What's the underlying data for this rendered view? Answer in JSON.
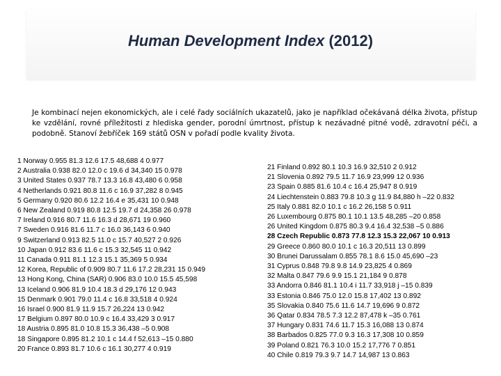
{
  "slide": {
    "title_main": "Human Development Index",
    "title_year": "(2012)",
    "description": "Je kombinací nejen ekonomických, ale i celé řady sociálních ukazatelů, jako je například očekávaná délka života, přístup ke vzdělání, rovné příležitosti z hlediska gender, porodní úmrtnost, přístup k nezávadné pitné vodě, zdravotní péči, a podobně. Stanoví žebříček 169 států OSN v pořadí podle kvality života.",
    "left_rows": [
      "1 Norway 0.955 81.3 12.6 17.5 48,688 4 0.977",
      "2 Australia 0.938 82.0 12.0 c 19.6 d 34,340 15 0.978",
      "3 United States 0.937 78.7 13.3 16.8 43,480 6 0.958",
      "4 Netherlands 0.921 80.8 11.6 c 16.9 37,282 8 0.945",
      "5 Germany 0.920 80.6 12.2 16.4 e 35,431 10 0.948",
      "6 New Zealand 0.919 80.8 12.5 19.7 d 24,358 26 0.978",
      "7 Ireland 0.916 80.7 11.6 16.3 d 28,671 19 0.960",
      "7 Sweden 0.916 81.6 11.7 c 16.0 36,143 6 0.940",
      "9 Switzerland 0.913 82.5 11.0 c 15.7 40,527 2 0.926",
      "10 Japan 0.912 83.6 11.6 c 15.3 32,545 11 0.942",
      "11 Canada 0.911 81.1 12.3 15.1 35,369 5 0.934",
      "12 Korea, Republic of 0.909 80.7 11.6 17.2 28,231 15 0.949",
      "13 Hong Kong, China (SAR) 0.906 83.0 10.0 15.5 45,598",
      "13 Iceland 0.906 81.9 10.4 18.3 d 29,176 12 0.943",
      "15 Denmark 0.901 79.0 11.4 c 16.8 33,518 4 0.924",
      "16 Israel 0.900 81.9 11.9 15.7 26,224 13 0.942",
      "17 Belgium 0.897 80.0 10.9 c 16.4 33,429 3 0.917",
      "18 Austria 0.895 81.0 10.8 15.3 36,438 –5 0.908",
      "18 Singapore 0.895 81.2 10.1 c 14.4 f 52,613 –15 0.880",
      "20 France 0.893 81.7 10.6 c 16.1 30,277 4 0.919"
    ],
    "right_rows": [
      "21 Finland 0.892 80.1 10.3 16.9 32,510 2 0.912",
      "21 Slovenia 0.892 79.5 11.7 16.9 23,999 12 0.936",
      "23 Spain 0.885 81.6 10.4 c 16.4 25,947 8 0.919",
      "24 Liechtenstein 0.883 79.8 10.3 g 11.9 84,880 h –22 0.832",
      "25 Italy 0.881 82.0 10.1 c 16.2 26,158 5 0.911",
      "26 Luxembourg 0.875 80.1 10.1 13.5 48,285 –20 0.858",
      "26 United Kingdom 0.875 80.3 9.4 16.4 32,538 –5 0.886",
      "28 Czech Republic 0.873 77.8 12.3 15.3 22,067 10 0.913",
      "29 Greece 0.860 80.0 10.1 c 16.3 20,511 13 0.899",
      "30 Brunei Darussalam 0.855 78.1 8.6 15.0 45,690 –23",
      "31 Cyprus 0.848 79.8 9.8 14.9 23,825 4 0.869",
      "32 Malta 0.847 79.6 9.9 15.1 21,184 9 0.878",
      "33 Andorra 0.846 81.1 10.4 i 11.7 33,918 j –15 0.839",
      "33 Estonia 0.846 75.0 12.0 15.8 17,402 13 0.892",
      "35 Slovakia 0.840 75.6 11.6 14.7 19,696 9 0.872",
      "36 Qatar 0.834 78.5 7.3 12.2 87,478 k –35 0.761",
      "37 Hungary 0.831 74.6 11.7 15.3 16,088 13 0.874",
      "38 Barbados 0.825 77.0 9.3 16.3 17,308 10 0.859",
      "39 Poland 0.821 76.3 10.0 15.2 17,776 7 0.851",
      "40 Chile 0.819 79.3 9.7 14.7 14,987 13 0.863"
    ],
    "highlighted_row": "28 Czech Republic 0.873 77.8 12.3 15.3 22,067 10 0.913"
  }
}
